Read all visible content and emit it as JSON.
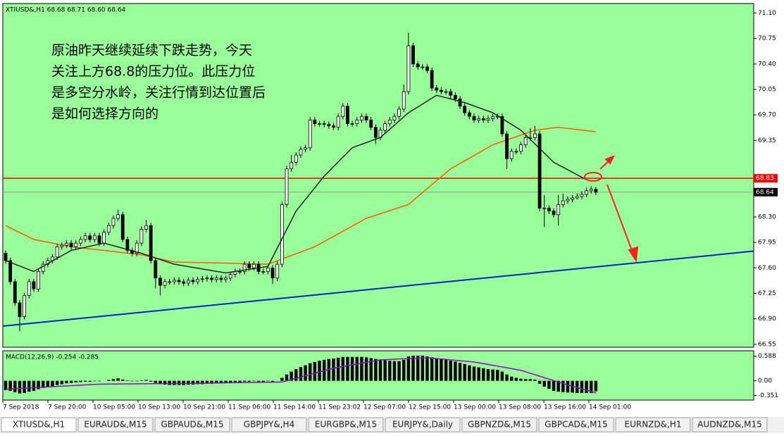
{
  "chart_data": {
    "type": "candlestick",
    "header": "XTIUSD&,H1  68.68 68.71 68.60 68.64",
    "annotation_lines": [
      "原油昨天继续延续下跌走势，今天",
      "关注上方68.8的压力位。此压力位",
      "是多空分水岭，关注行情到达位置后",
      "是如何选择方向的"
    ],
    "open": [
      67.8,
      67.7,
      67.41,
      67.12,
      66.93,
      67.22,
      67.41,
      67.31,
      67.55,
      67.65,
      67.7,
      67.75,
      67.89,
      67.91,
      67.94,
      67.89,
      67.94,
      67.99,
      68.04,
      67.99,
      68.04,
      67.94,
      68.09,
      68.18,
      68.28,
      68.33,
      67.99,
      67.84,
      67.8,
      67.94,
      68.13,
      68.18,
      67.7,
      67.46,
      67.36,
      67.41,
      67.41,
      67.43,
      67.41,
      67.39,
      67.43,
      67.41,
      67.44,
      67.45,
      67.46,
      67.44,
      67.46,
      67.44,
      67.46,
      67.51,
      67.55,
      67.55,
      67.65,
      67.6,
      67.65,
      67.55,
      67.55,
      67.6,
      67.46,
      67.65,
      68.47,
      68.96,
      69.05,
      69.15,
      69.23,
      69.25,
      69.63,
      69.58,
      69.58,
      69.57,
      69.55,
      69.53,
      69.68,
      69.82,
      69.58,
      69.58,
      69.63,
      69.68,
      69.63,
      69.53,
      69.39,
      69.49,
      69.58,
      69.63,
      69.68,
      69.78,
      70.02,
      70.65,
      70.4,
      70.36,
      70.36,
      70.31,
      70.07,
      70.04,
      70.02,
      70.02,
      69.97,
      69.92,
      69.82,
      69.73,
      69.68,
      69.63,
      69.65,
      69.63,
      69.65,
      69.68,
      69.68,
      69.44,
      69.1,
      69.2,
      69.2,
      69.29,
      69.39,
      69.39,
      69.44,
      68.42,
      68.42,
      68.38,
      68.33,
      68.47,
      68.52,
      68.54,
      68.56,
      68.58,
      68.61,
      68.66,
      68.68
    ],
    "high": [
      67.84,
      67.74,
      67.45,
      67.16,
      67.26,
      67.45,
      67.45,
      67.59,
      67.69,
      67.74,
      67.79,
      67.93,
      67.95,
      67.98,
      67.98,
      67.98,
      68.03,
      68.08,
      68.08,
      68.08,
      68.08,
      68.13,
      68.22,
      68.32,
      68.4,
      68.37,
      68.03,
      67.88,
      67.98,
      68.17,
      68.26,
      68.22,
      67.74,
      67.5,
      67.45,
      67.45,
      67.47,
      67.47,
      67.45,
      67.47,
      67.47,
      67.48,
      67.49,
      67.5,
      67.5,
      67.5,
      67.5,
      67.5,
      67.55,
      67.59,
      67.59,
      67.69,
      67.69,
      67.69,
      67.69,
      67.59,
      67.64,
      67.64,
      67.69,
      68.51,
      69.0,
      69.15,
      69.19,
      69.27,
      69.29,
      69.67,
      69.67,
      69.62,
      69.62,
      69.61,
      69.59,
      69.72,
      69.86,
      69.86,
      69.62,
      69.67,
      69.72,
      69.72,
      69.67,
      69.57,
      69.53,
      69.62,
      69.67,
      69.72,
      69.82,
      70.12,
      70.83,
      70.69,
      70.44,
      70.4,
      70.4,
      70.35,
      70.11,
      70.08,
      70.06,
      70.06,
      70.01,
      69.96,
      69.86,
      69.77,
      69.72,
      69.69,
      69.69,
      69.69,
      69.72,
      69.72,
      69.72,
      69.48,
      69.24,
      69.24,
      69.33,
      69.43,
      69.52,
      69.55,
      69.48,
      68.6,
      68.46,
      68.42,
      68.6,
      68.62,
      68.58,
      68.6,
      68.62,
      68.65,
      68.7,
      68.72,
      68.71
    ],
    "low": [
      67.66,
      67.37,
      67.08,
      66.73,
      66.89,
      67.18,
      67.27,
      67.27,
      67.51,
      67.61,
      67.66,
      67.71,
      67.85,
      67.87,
      67.85,
      67.85,
      67.9,
      67.95,
      67.95,
      67.95,
      67.9,
      67.9,
      68.05,
      68.14,
      68.24,
      67.95,
      67.8,
      67.76,
      67.76,
      67.9,
      68.09,
      67.66,
      67.32,
      67.22,
      67.32,
      67.37,
      67.37,
      67.37,
      67.35,
      67.35,
      67.37,
      67.37,
      67.4,
      67.41,
      67.4,
      67.4,
      67.4,
      67.4,
      67.42,
      67.47,
      67.51,
      67.51,
      67.56,
      67.56,
      67.51,
      67.51,
      67.51,
      67.38,
      67.42,
      67.61,
      68.43,
      68.92,
      69.01,
      69.11,
      69.19,
      69.21,
      69.54,
      69.54,
      69.53,
      69.51,
      69.49,
      69.49,
      69.64,
      69.54,
      69.54,
      69.54,
      69.59,
      69.59,
      69.49,
      69.3,
      69.35,
      69.45,
      69.54,
      69.59,
      69.64,
      69.74,
      69.98,
      70.36,
      70.32,
      70.32,
      70.27,
      70.03,
      70.0,
      69.98,
      69.98,
      69.93,
      69.88,
      69.78,
      69.69,
      69.64,
      69.59,
      69.59,
      69.59,
      69.59,
      69.61,
      69.64,
      69.4,
      68.96,
      69.06,
      69.16,
      69.16,
      69.25,
      69.35,
      69.35,
      68.38,
      68.16,
      68.34,
      68.29,
      68.18,
      68.43,
      68.48,
      68.5,
      68.54,
      68.54,
      68.57,
      68.62,
      68.6
    ],
    "close": [
      67.7,
      67.41,
      67.12,
      66.93,
      67.22,
      67.41,
      67.31,
      67.55,
      67.65,
      67.7,
      67.75,
      67.89,
      67.91,
      67.94,
      67.89,
      67.94,
      67.99,
      68.04,
      67.99,
      68.04,
      67.94,
      68.09,
      68.18,
      68.28,
      68.33,
      67.99,
      67.84,
      67.8,
      67.94,
      68.13,
      68.18,
      67.7,
      67.46,
      67.36,
      67.41,
      67.41,
      67.43,
      67.41,
      67.39,
      67.43,
      67.41,
      67.44,
      67.45,
      67.46,
      67.44,
      67.46,
      67.44,
      67.46,
      67.51,
      67.55,
      67.55,
      67.65,
      67.6,
      67.65,
      67.55,
      67.55,
      67.6,
      67.46,
      67.65,
      68.47,
      68.96,
      69.05,
      69.15,
      69.23,
      69.25,
      69.63,
      69.58,
      69.58,
      69.57,
      69.55,
      69.53,
      69.68,
      69.82,
      69.58,
      69.58,
      69.63,
      69.68,
      69.63,
      69.53,
      69.39,
      69.49,
      69.58,
      69.63,
      69.68,
      69.78,
      70.02,
      70.65,
      70.4,
      70.36,
      70.36,
      70.31,
      70.07,
      70.04,
      70.02,
      70.02,
      69.97,
      69.92,
      69.82,
      69.73,
      69.68,
      69.63,
      69.65,
      69.63,
      69.65,
      69.68,
      69.68,
      69.44,
      69.1,
      69.2,
      69.2,
      69.29,
      69.39,
      69.39,
      69.44,
      68.42,
      68.42,
      68.38,
      68.33,
      68.47,
      68.52,
      68.54,
      68.56,
      68.58,
      68.61,
      68.66,
      68.68,
      68.64
    ],
    "ylim": [
      66.51,
      71.23
    ],
    "yticks": [
      {
        "value": 71.1,
        "label": "71.10"
      },
      70.75,
      {
        "value": 70.4,
        "label": "70.40"
      },
      70.05,
      {
        "value": 69.7,
        "label": "69.70"
      },
      69.35,
      {
        "value": 68.3,
        "label": "68.30"
      },
      67.95,
      {
        "value": 67.6,
        "label": "67.60"
      },
      67.25,
      {
        "value": 66.9,
        "label": "66.90"
      },
      66.55
    ],
    "ma_fast": {
      "color": "#222222",
      "x": [
        0,
        6,
        14,
        21,
        29,
        36,
        47,
        56,
        62,
        68,
        74,
        80,
        86,
        92,
        98,
        104,
        110,
        117,
        124
      ],
      "values": [
        67.7,
        67.55,
        67.84,
        67.94,
        67.8,
        67.65,
        67.53,
        67.62,
        68.38,
        68.86,
        69.25,
        69.39,
        69.73,
        69.97,
        69.87,
        69.73,
        69.49,
        69.05,
        68.81
      ]
    },
    "ma_slow": {
      "color": "#ff5a00",
      "x": [
        0,
        6,
        14,
        21,
        29,
        36,
        44,
        56,
        66,
        77,
        86,
        95,
        104,
        113,
        118,
        126
      ],
      "values": [
        68.18,
        67.99,
        67.89,
        67.84,
        67.78,
        67.68,
        67.67,
        67.65,
        67.89,
        68.28,
        68.47,
        68.96,
        69.29,
        69.49,
        69.53,
        69.47
      ]
    },
    "trendline": {
      "color": "#0022cc",
      "x": [
        -0.6,
        159.7
      ],
      "values": [
        66.8,
        67.83
      ]
    },
    "levels": [
      {
        "value": 68.83,
        "color": "#ff0000"
      },
      {
        "value": 68.64,
        "color": "#999999"
      }
    ],
    "indicator": {
      "label": "MACD(12,26,9) -0.254 -0.285",
      "ylim": [
        -0.46,
        0.7
      ],
      "yticks": [
        0.588,
        {
          "value": 0,
          "label": "0.00"
        },
        -0.351
      ],
      "histogram": [
        -0.22,
        -0.24,
        -0.27,
        -0.3,
        -0.29,
        -0.26,
        -0.24,
        -0.2,
        -0.17,
        -0.15,
        -0.13,
        -0.1,
        -0.08,
        -0.06,
        -0.05,
        -0.04,
        -0.03,
        -0.02,
        -0.02,
        -0.01,
        -0.01,
        0.0,
        0.02,
        0.04,
        0.06,
        0.03,
        0.01,
        -0.01,
        -0.01,
        0.01,
        0.02,
        -0.02,
        -0.05,
        -0.08,
        -0.09,
        -0.1,
        -0.1,
        -0.1,
        -0.1,
        -0.09,
        -0.09,
        -0.08,
        -0.08,
        -0.07,
        -0.07,
        -0.06,
        -0.06,
        -0.05,
        -0.04,
        -0.03,
        -0.03,
        -0.02,
        -0.02,
        -0.01,
        -0.02,
        -0.02,
        -0.01,
        -0.02,
        0.0,
        0.07,
        0.15,
        0.22,
        0.28,
        0.33,
        0.37,
        0.42,
        0.45,
        0.48,
        0.5,
        0.52,
        0.53,
        0.55,
        0.57,
        0.57,
        0.57,
        0.57,
        0.57,
        0.56,
        0.54,
        0.52,
        0.5,
        0.49,
        0.48,
        0.47,
        0.47,
        0.5,
        0.58,
        0.6,
        0.6,
        0.6,
        0.58,
        0.56,
        0.54,
        0.52,
        0.5,
        0.48,
        0.46,
        0.43,
        0.4,
        0.37,
        0.34,
        0.32,
        0.3,
        0.28,
        0.27,
        0.26,
        0.22,
        0.15,
        0.1,
        0.07,
        0.05,
        0.04,
        0.04,
        0.03,
        -0.07,
        -0.14,
        -0.19,
        -0.24,
        -0.26,
        -0.27,
        -0.28,
        -0.28,
        -0.29,
        -0.29,
        -0.29,
        -0.29,
        -0.25
      ],
      "signal": {
        "color": "#9a00cc",
        "x": [
          0,
          20,
          40,
          59,
          70,
          80,
          90,
          100,
          110,
          120,
          126
        ],
        "values": [
          -0.2,
          -0.08,
          -0.06,
          -0.03,
          0.3,
          0.5,
          0.55,
          0.45,
          0.25,
          -0.1,
          -0.285
        ]
      }
    },
    "x_labels": [
      "7 Sep 2018",
      "7 Sep 20:00",
      "10 Sep 05:00",
      "10 Sep 13:00",
      "10 Sep 21:00",
      "11 Sep 06:00",
      "11 Sep 14:00",
      "11 Sep 23:02",
      "12 Sep 07:00",
      "12 Sep 15:00",
      "13 Sep 00:00",
      "13 Sep 08:00",
      "13 Sep 16:00",
      "14 Sep 01:00"
    ]
  },
  "tabs": [
    "XTIUSD&,H1",
    "EURAUD&,M15",
    "GBPAUD&,M15",
    "GBPJPY&,H4",
    "EURGBP&,M15",
    "EURJPY&,Daily",
    "GBPNZD&,M15",
    "GBPCAD&,M15",
    "EURNZD&,H1",
    "AUDNZD&,M15"
  ],
  "active_tab": 0
}
